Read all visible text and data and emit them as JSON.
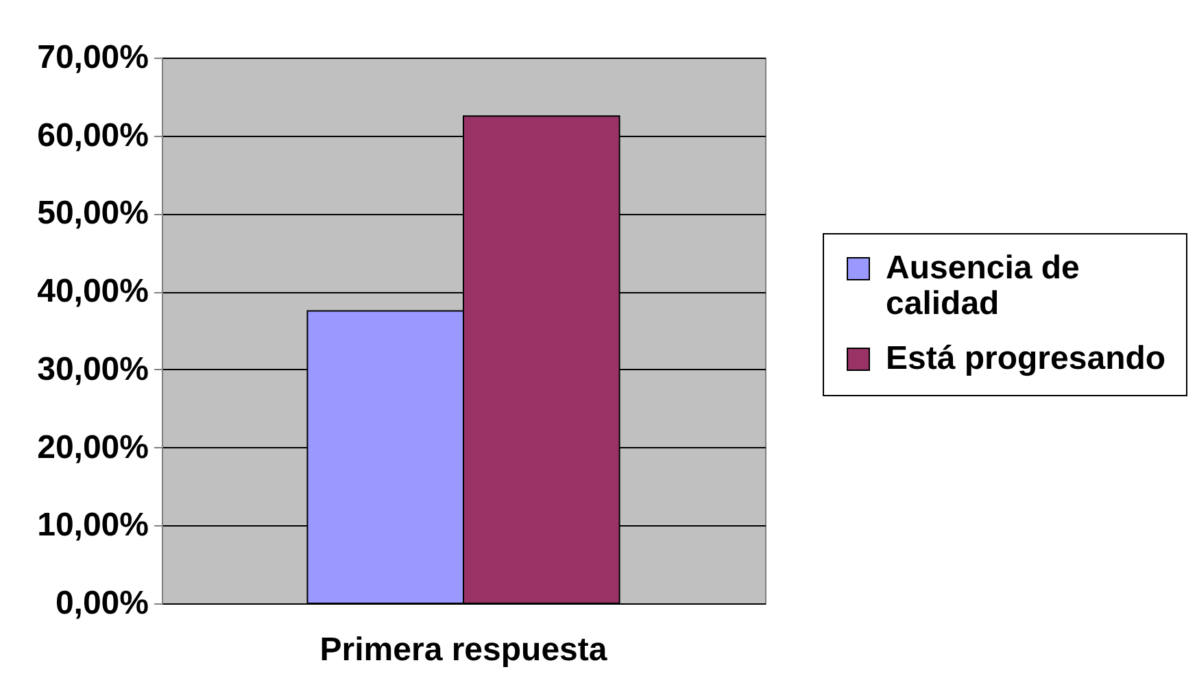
{
  "chart_data": {
    "type": "bar",
    "categories": [
      "Primera respuesta"
    ],
    "series": [
      {
        "name": "Ausencia de calidad",
        "color": "#9999ff",
        "values": [
          37.5
        ]
      },
      {
        "name": "Está progresando",
        "color": "#993366",
        "values": [
          62.5
        ]
      }
    ],
    "ylim": [
      0,
      70
    ],
    "yticks": [
      {
        "value": 0,
        "label": "0,00%"
      },
      {
        "value": 10,
        "label": "10,00%"
      },
      {
        "value": 20,
        "label": "20,00%"
      },
      {
        "value": 30,
        "label": "30,00%"
      },
      {
        "value": 40,
        "label": "40,00%"
      },
      {
        "value": 50,
        "label": "50,00%"
      },
      {
        "value": 60,
        "label": "60,00%"
      },
      {
        "value": 70,
        "label": "70,00%"
      }
    ],
    "grid": true,
    "legend": "right"
  }
}
